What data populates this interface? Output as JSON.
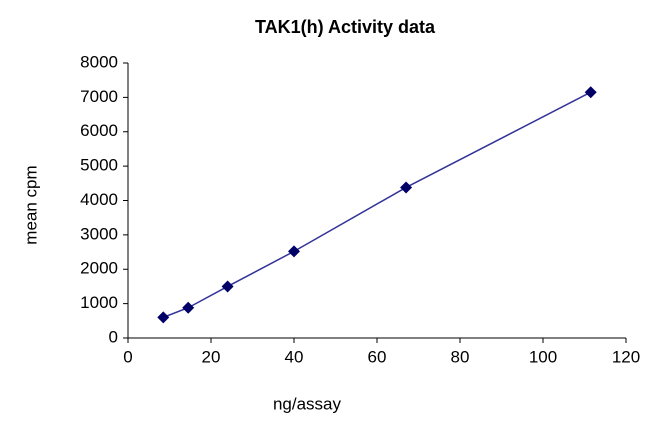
{
  "chart_data": {
    "type": "line",
    "title": "TAK1(h) Activity data",
    "x_label": "ng/assay",
    "y_label": "mean cpm",
    "x": [
      8.5,
      14.5,
      24,
      40,
      67,
      111.5
    ],
    "series": [
      {
        "name": "mean cpm",
        "color": "#000066",
        "line_color": "#333399",
        "marker": "diamond",
        "values": [
          600,
          880,
          1500,
          2520,
          4380,
          7150
        ]
      }
    ],
    "xlim": [
      0,
      120
    ],
    "xticks": [
      0,
      20,
      40,
      60,
      80,
      100,
      120
    ],
    "ylim": [
      0,
      8000
    ],
    "yticks": [
      0,
      1000,
      2000,
      3000,
      4000,
      5000,
      6000,
      7000,
      8000
    ],
    "grid": false
  }
}
